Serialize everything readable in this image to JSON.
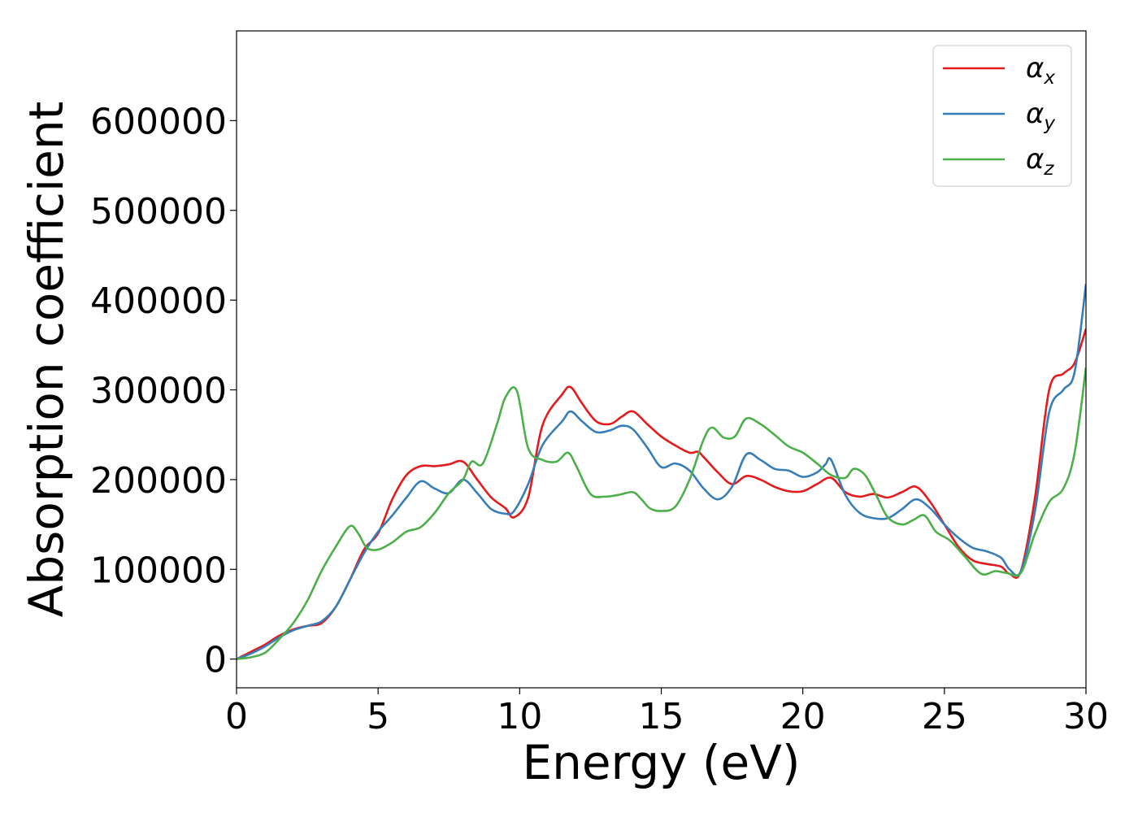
{
  "chart_data": {
    "type": "line",
    "title": "",
    "xlabel": "Energy (eV)",
    "ylabel": "Absorption coefficient",
    "xlim": [
      0,
      30
    ],
    "ylim": [
      -32000,
      700000
    ],
    "xticks": [
      0,
      5,
      10,
      15,
      20,
      25,
      30
    ],
    "yticks": [
      0,
      100000,
      200000,
      300000,
      400000,
      500000,
      600000
    ],
    "grid": false,
    "legend_position": "top-right",
    "series": [
      {
        "name": "α_x",
        "legend_base": "α",
        "legend_sub": "x",
        "color": "#e41a1c",
        "x": [
          0,
          0.5,
          1,
          1.5,
          2,
          2.5,
          3,
          3.5,
          4,
          4.5,
          5,
          5.5,
          6,
          6.5,
          7,
          7.5,
          8,
          8.5,
          9,
          9.5,
          9.8,
          10.3,
          10.8,
          11.5,
          11.8,
          12.2,
          12.7,
          13.2,
          13.6,
          14,
          14.5,
          15,
          15.5,
          16,
          16.3,
          16.5,
          17,
          17.5,
          18,
          18.5,
          19,
          19.5,
          20,
          20.5,
          21,
          21.5,
          22,
          22.5,
          23,
          23.5,
          24,
          24.5,
          25,
          25.5,
          26,
          26.5,
          27,
          27.3,
          27.7,
          28.2,
          28.7,
          29.2,
          29.6,
          30
        ],
        "y": [
          0,
          8000,
          16000,
          26000,
          33000,
          37000,
          40000,
          58000,
          88000,
          122000,
          140000,
          178000,
          205000,
          215000,
          215000,
          217000,
          220000,
          200000,
          180000,
          168000,
          158000,
          180000,
          260000,
          295000,
          303000,
          285000,
          265000,
          262000,
          270000,
          276000,
          262000,
          248000,
          238000,
          230000,
          231000,
          225000,
          208000,
          195000,
          204000,
          200000,
          192000,
          187000,
          187000,
          195000,
          202000,
          186000,
          181000,
          184000,
          180000,
          186000,
          192000,
          175000,
          150000,
          125000,
          110000,
          106000,
          103000,
          95000,
          98000,
          180000,
          300000,
          318000,
          330000,
          368000
        ]
      },
      {
        "name": "α_y",
        "legend_base": "α",
        "legend_sub": "y",
        "color": "#377eb8",
        "x": [
          0,
          0.5,
          1,
          1.5,
          2,
          2.5,
          3,
          3.5,
          4,
          4.5,
          5,
          5.5,
          6,
          6.5,
          7,
          7.5,
          8,
          8.5,
          9,
          9.5,
          9.8,
          10.3,
          10.8,
          11.5,
          11.8,
          12.2,
          12.7,
          13.2,
          13.6,
          14,
          14.5,
          15,
          15.5,
          16,
          16.5,
          17,
          17.5,
          18,
          18.5,
          19,
          19.5,
          20,
          20.5,
          20.8,
          21,
          21.5,
          22,
          22.5,
          23,
          23.5,
          24,
          24.5,
          25,
          25.5,
          26,
          26.5,
          27,
          27.3,
          27.7,
          28.2,
          28.7,
          29.2,
          29.6,
          30
        ],
        "y": [
          0,
          6000,
          14000,
          24000,
          32000,
          37000,
          42000,
          58000,
          88000,
          118000,
          142000,
          160000,
          180000,
          198000,
          190000,
          185000,
          200000,
          185000,
          167000,
          162000,
          165000,
          195000,
          238000,
          265000,
          276000,
          265000,
          253000,
          255000,
          260000,
          256000,
          236000,
          214000,
          218000,
          210000,
          190000,
          178000,
          192000,
          228000,
          222000,
          212000,
          210000,
          203000,
          208000,
          217000,
          222000,
          183000,
          163000,
          157000,
          157000,
          167000,
          178000,
          168000,
          150000,
          135000,
          124000,
          120000,
          113000,
          100000,
          98000,
          165000,
          275000,
          300000,
          320000,
          418000
        ]
      },
      {
        "name": "α_z",
        "legend_base": "α",
        "legend_sub": "z",
        "color": "#4daf4a",
        "x": [
          0,
          0.5,
          1,
          1.5,
          2,
          2.5,
          3,
          3.5,
          4,
          4.3,
          4.6,
          5,
          5.5,
          6,
          6.5,
          7,
          7.5,
          8,
          8.3,
          8.7,
          9.2,
          9.5,
          9.9,
          10.3,
          10.8,
          11.3,
          11.7,
          12,
          12.5,
          13,
          13.5,
          14,
          14.3,
          14.6,
          15,
          15.5,
          16,
          16.5,
          16.8,
          17.2,
          17.6,
          18,
          18.5,
          19,
          19.5,
          20,
          20.5,
          21,
          21.5,
          21.8,
          22.2,
          22.6,
          23,
          23.5,
          23.9,
          24.3,
          24.7,
          25.2,
          25.7,
          26.3,
          26.8,
          27.2,
          27.7,
          28.2,
          28.7,
          29.2,
          29.6,
          30
        ],
        "y": [
          0,
          2000,
          7000,
          22000,
          40000,
          65000,
          98000,
          125000,
          148000,
          140000,
          124000,
          122000,
          130000,
          142000,
          147000,
          163000,
          185000,
          200000,
          220000,
          218000,
          262000,
          292000,
          299000,
          235000,
          222000,
          220000,
          230000,
          215000,
          184000,
          181000,
          183000,
          186000,
          178000,
          168000,
          165000,
          170000,
          200000,
          245000,
          258000,
          247000,
          248000,
          268000,
          262000,
          250000,
          237000,
          230000,
          218000,
          205000,
          202000,
          212000,
          205000,
          182000,
          158000,
          150000,
          155000,
          160000,
          142000,
          132000,
          115000,
          95000,
          98000,
          96000,
          96000,
          140000,
          175000,
          190000,
          230000,
          325000
        ]
      }
    ]
  }
}
